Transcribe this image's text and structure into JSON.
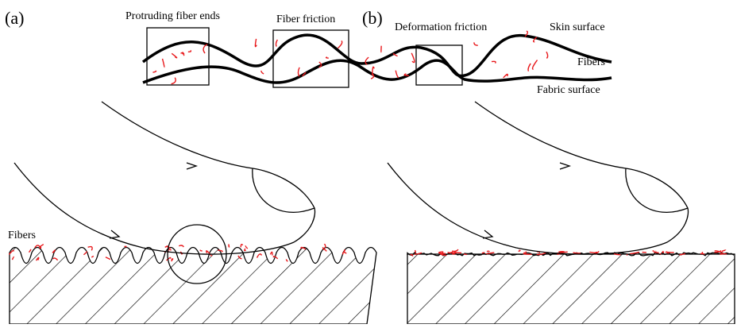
{
  "panels": [
    {
      "label": "(a)"
    },
    {
      "label": "(b)"
    }
  ],
  "inset": {
    "callouts": [
      "Protruding fiber ends",
      "Fiber friction",
      "Deformation friction"
    ],
    "layers": [
      "Skin surface",
      "Fibers",
      "Fabric surface"
    ]
  },
  "annotations": {
    "fibers": "Fibers"
  }
}
